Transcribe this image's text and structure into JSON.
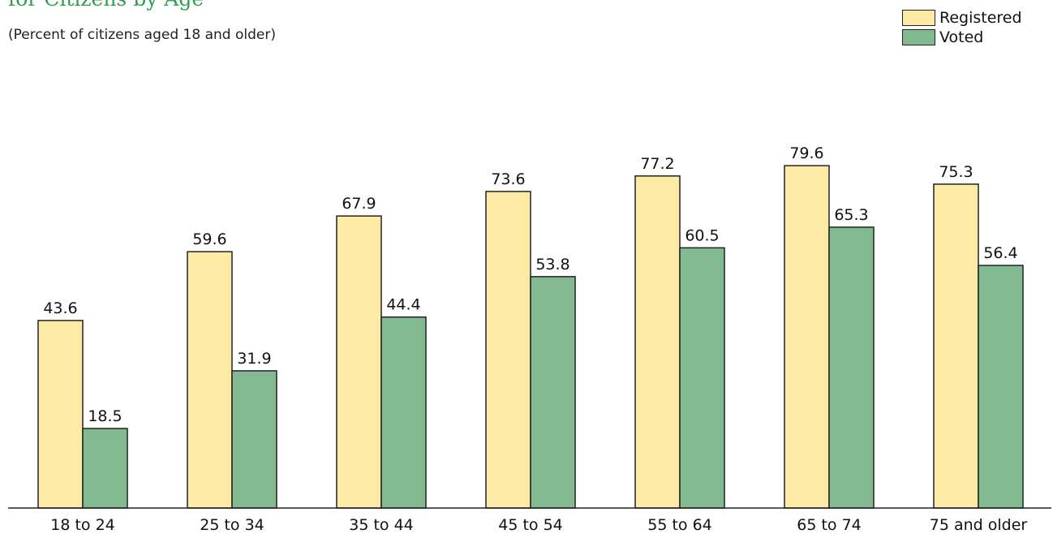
{
  "title": "for Citizens by Age",
  "subtitle": "(Percent of citizens aged 18 and older)",
  "colors": {
    "registered": "#fdeba5",
    "voted": "#82b991",
    "title": "#2e9e4e"
  },
  "chart_data": {
    "type": "bar",
    "title": "for Citizens by Age",
    "subtitle": "(Percent of citizens aged 18 and older)",
    "categories": [
      "18 to 24",
      "25 to 34",
      "35 to 44",
      "45 to 54",
      "55 to 64",
      "65 to 74",
      "75 and older"
    ],
    "series": [
      {
        "name": "Registered",
        "values": [
          43.6,
          59.6,
          67.9,
          73.6,
          77.2,
          79.6,
          75.3
        ]
      },
      {
        "name": "Voted",
        "values": [
          18.5,
          31.9,
          44.4,
          53.8,
          60.5,
          65.3,
          56.4
        ]
      }
    ],
    "legend_position": "top-right",
    "grid": false,
    "ylim": [
      0,
      80
    ]
  }
}
